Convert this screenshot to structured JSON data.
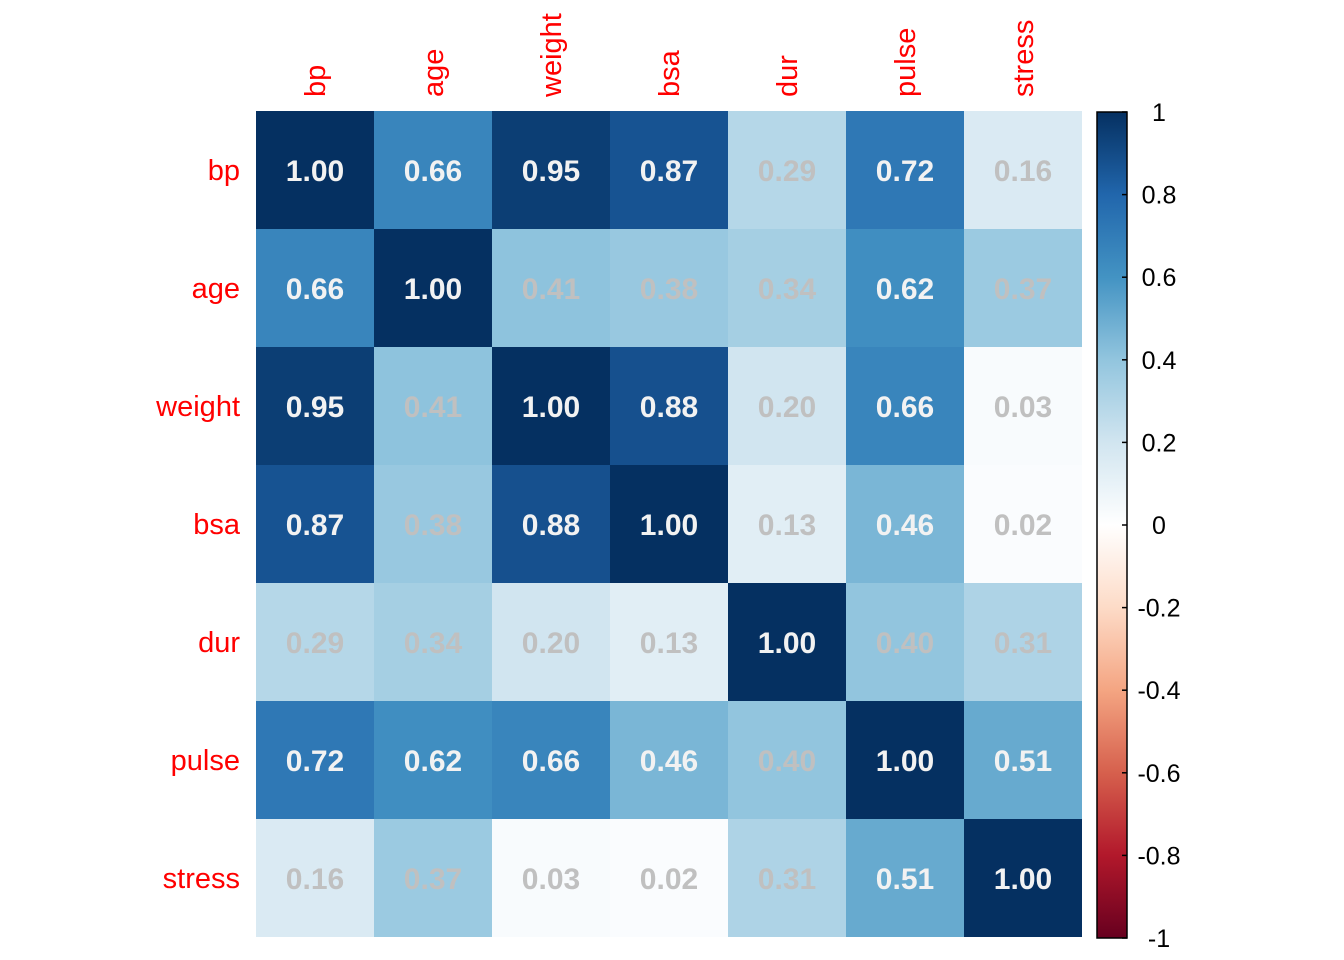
{
  "chart_data": {
    "type": "heatmap",
    "variables": [
      "bp",
      "age",
      "weight",
      "bsa",
      "dur",
      "pulse",
      "stress"
    ],
    "matrix": [
      [
        1.0,
        0.66,
        0.95,
        0.87,
        0.29,
        0.72,
        0.16
      ],
      [
        0.66,
        1.0,
        0.41,
        0.38,
        0.34,
        0.62,
        0.37
      ],
      [
        0.95,
        0.41,
        1.0,
        0.88,
        0.2,
        0.66,
        0.03
      ],
      [
        0.87,
        0.38,
        0.88,
        1.0,
        0.13,
        0.46,
        0.02
      ],
      [
        0.29,
        0.34,
        0.2,
        0.13,
        1.0,
        0.4,
        0.31
      ],
      [
        0.72,
        0.62,
        0.66,
        0.46,
        0.4,
        1.0,
        0.51
      ],
      [
        0.16,
        0.37,
        0.03,
        0.02,
        0.31,
        0.51,
        1.0
      ]
    ],
    "value_labels": [
      [
        "1.00",
        "0.66",
        "0.95",
        "0.87",
        "0.29",
        "0.72",
        "0.16"
      ],
      [
        "0.66",
        "1.00",
        "0.41",
        "0.38",
        "0.34",
        "0.62",
        "0.37"
      ],
      [
        "0.95",
        "0.41",
        "1.00",
        "0.88",
        "0.20",
        "0.66",
        "0.03"
      ],
      [
        "0.87",
        "0.38",
        "0.88",
        "1.00",
        "0.13",
        "0.46",
        "0.02"
      ],
      [
        "0.29",
        "0.34",
        "0.20",
        "0.13",
        "1.00",
        "0.40",
        "0.31"
      ],
      [
        "0.72",
        "0.62",
        "0.66",
        "0.46",
        "0.40",
        "1.00",
        "0.51"
      ],
      [
        "0.16",
        "0.37",
        "0.03",
        "0.02",
        "0.31",
        "0.51",
        "1.00"
      ]
    ],
    "color_scale": {
      "range": [
        -1,
        1
      ],
      "palette": "RdBu",
      "stops": [
        "#67001F",
        "#B2182B",
        "#D6604D",
        "#F4A582",
        "#FDDBC7",
        "#FFFFFF",
        "#D1E5F0",
        "#92C5DE",
        "#4393C3",
        "#2166AC",
        "#053061"
      ]
    },
    "colorbar_ticks": [
      "1",
      "0.8",
      "0.6",
      "0.4",
      "0.2",
      "0",
      "-0.2",
      "-0.4",
      "-0.6",
      "-0.8",
      "-1"
    ],
    "label_color": "#FF0000",
    "value_text_color_strong": "#F2F2F2",
    "value_text_color_weak": "#C0C0C0",
    "legend_position": "right",
    "grid": false
  }
}
